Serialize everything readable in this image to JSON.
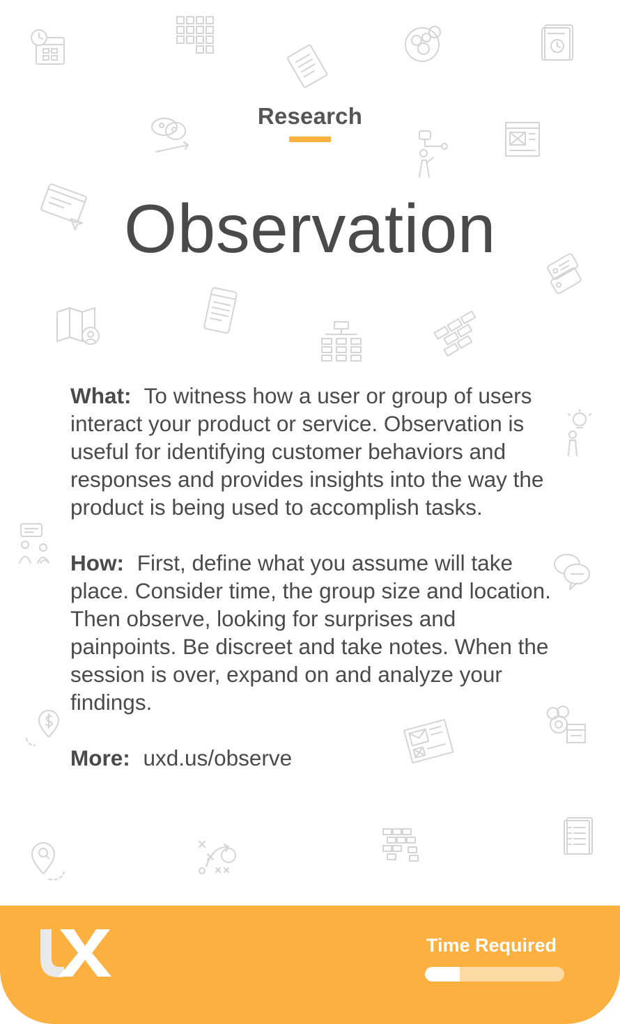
{
  "card": {
    "category": "Research",
    "title": "Observation",
    "sections": [
      {
        "label": "What:",
        "text": "To witness how a user or group of users interact your product or service. Observation is useful for identifying customer behaviors and responses and provides insights into the way the product is being used to accomplish tasks."
      },
      {
        "label": "How:",
        "text": "First, define what you assume will take place. Consider time, the group size and location. Then observe, looking for surprises and painpoints. Be discreet and take notes. When the session is over, expand on and analyze your findings."
      },
      {
        "label": "More:",
        "text": "uxd.us/observe"
      }
    ]
  },
  "footer": {
    "logo_letters": "UX",
    "time_label": "Time Required",
    "time_fraction": 0.25
  },
  "colors": {
    "accent": "#fbb040",
    "text": "#4a4a4a",
    "icon_stroke": "#d4d4d4"
  },
  "background_icons": [
    "calendar-clock-icon",
    "grid-icon",
    "checklist-icon",
    "venn-circles-icon",
    "document-history-icon",
    "swatch-arrows-icon",
    "flowchart-person-icon",
    "wireframe-icon",
    "browser-pointer-icon",
    "tags-icon",
    "map-search-icon",
    "mobile-list-icon",
    "sitemap-icon",
    "bricks-icon",
    "idea-person-icon",
    "chat-person-icon",
    "discussion-icon",
    "money-location-icon",
    "mail-wireframe-icon",
    "team-settings-icon",
    "location-search-icon",
    "strategy-play-icon",
    "block-stack-icon",
    "document-list-icon"
  ]
}
